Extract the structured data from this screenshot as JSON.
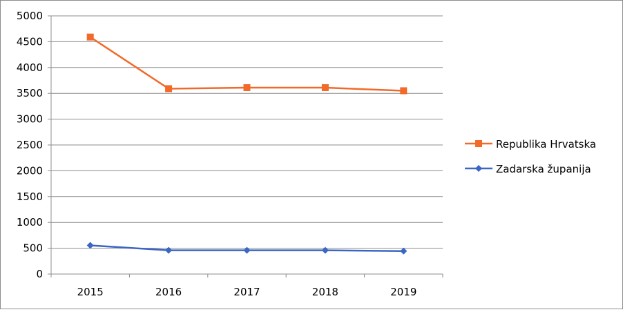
{
  "chart_data": {
    "type": "line",
    "title": "",
    "xlabel": "",
    "ylabel": "",
    "categories": [
      "2015",
      "2016",
      "2017",
      "2018",
      "2019"
    ],
    "ylim": [
      0,
      5000
    ],
    "yticks": [
      0,
      500,
      1000,
      1500,
      2000,
      2500,
      3000,
      3500,
      4000,
      4500,
      5000
    ],
    "grid": true,
    "legend_position": "right",
    "series": [
      {
        "name": "Republika Hrvatska",
        "values": [
          4590,
          3590,
          3610,
          3610,
          3550
        ],
        "color": "#f26a2a",
        "marker": "square"
      },
      {
        "name": "Zadarska županija",
        "values": [
          555,
          460,
          460,
          460,
          445
        ],
        "color": "#3a66c4",
        "marker": "diamond"
      }
    ]
  }
}
